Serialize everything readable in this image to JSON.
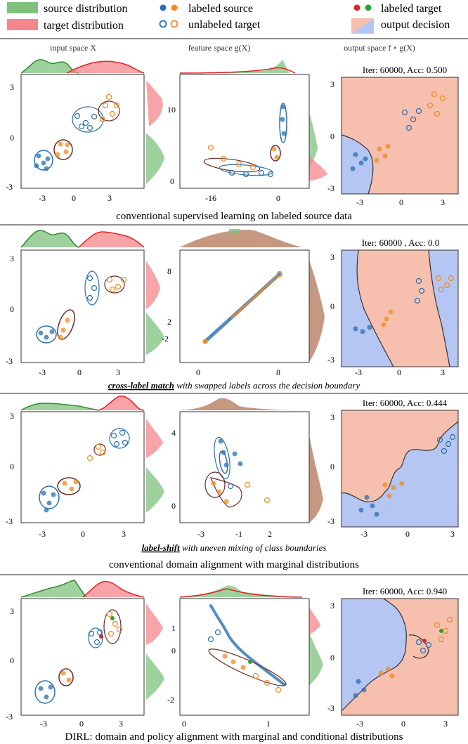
{
  "legend": {
    "source_distribution": "source distribution",
    "target_distribution": "target distribution",
    "labeled_source": "labeled source",
    "unlabeled_target": "unlabeled target",
    "labeled_target": "labeled target",
    "output_decision": "output decision"
  },
  "colors": {
    "blue": "#2a6fb0",
    "orange": "#f28a1f",
    "green_fill": "#7fc27f",
    "green_line": "#2e8b2e",
    "red_fill": "#f4868b",
    "red_line": "#e02424",
    "region_blue": "#b6c6f2",
    "region_red": "#f6bfae",
    "contour_brown": "#6b2a24",
    "labeled_target_red": "#d62728",
    "labeled_target_green": "#2ca02c"
  },
  "column_titles": [
    "input space X",
    "feature space g(X)",
    "output space f ∘ g(X)"
  ],
  "rows": [
    {
      "caption": "conventional supervised learning on labeled source data",
      "iter_text": "Iter: 60000, Acc: 0.500",
      "panels": [
        {
          "xticks": [
            "-3",
            "0",
            "3"
          ],
          "yticks": [
            "3",
            "0",
            "-3"
          ]
        },
        {
          "xticks": [
            "-16",
            "0"
          ],
          "yticks": [
            "10",
            "0"
          ]
        },
        {
          "xticks": [
            "-3",
            "0",
            "3"
          ],
          "yticks": [
            "3",
            "0",
            "-3"
          ]
        }
      ]
    },
    {
      "caption_bold": "cross-label match",
      "caption_rest": " with swapped labels across the decision boundary",
      "iter_text": "Iter: 60000 , Acc: 0.0",
      "panels": [
        {
          "xticks": [
            "-3",
            "0",
            "3"
          ],
          "yticks": [
            "3",
            "0",
            "-3"
          ]
        },
        {
          "xticks": [
            "0",
            "8"
          ],
          "yticks": [
            "8",
            "2",
            "-2"
          ]
        },
        {
          "xticks": [
            "-3",
            "0",
            "3"
          ],
          "yticks": [
            "3",
            "0",
            "-3"
          ]
        }
      ]
    },
    {
      "caption_bold": "label-shift",
      "caption_rest": " with uneven mixing of class boundaries",
      "iter_text": "Iter: 60000, Acc: 0.444",
      "panels": [
        {
          "xticks": [
            "-3",
            "0",
            "3"
          ],
          "yticks": [
            "3",
            "0",
            "-3"
          ]
        },
        {
          "xticks": [
            "-3",
            "-1",
            "2"
          ],
          "yticks": [
            "4",
            "0"
          ]
        },
        {
          "xticks": [
            "-3",
            "0",
            "3"
          ],
          "yticks": [
            "3",
            "0",
            "-3"
          ]
        }
      ]
    },
    {
      "iter_text": "Iter: 60000, Acc: 0.940",
      "caption": "DIRL: domain and policy alignment with marginal and conditional distributions",
      "panels": [
        {
          "xticks": [
            "-3",
            "0",
            "3"
          ],
          "yticks": [
            "3",
            "0",
            "-3"
          ]
        },
        {
          "xticks": [
            "0",
            "1"
          ],
          "yticks": [
            "1",
            "0",
            "-2"
          ]
        },
        {
          "xticks": [
            "-3",
            "0",
            "3"
          ],
          "yticks": [
            "3",
            "0",
            "-3"
          ]
        }
      ]
    }
  ],
  "section_caption": "conventional domain alignment with marginal distributions"
}
